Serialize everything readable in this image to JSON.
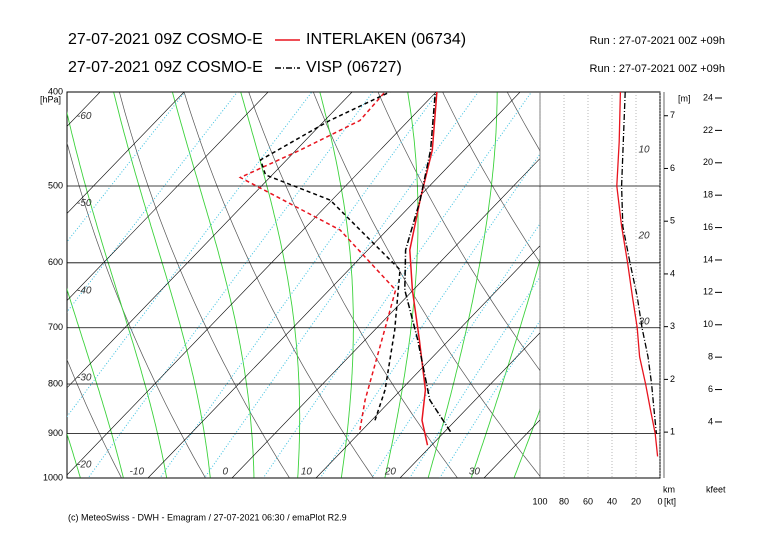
{
  "chart_data": {
    "type": "skewt",
    "footer": "(c) MeteoSwiss - DWH - Emagram / 27-07-2021 06:30 / emaPlot R2.9",
    "y_label": "[hPa]",
    "ylim": [
      400,
      1000
    ],
    "yticks": [
      400,
      500,
      600,
      700,
      800,
      900,
      1000
    ],
    "log_y": true,
    "xticks": [
      -60,
      -50,
      -40,
      -30,
      -20,
      -10,
      0,
      10,
      20,
      30
    ],
    "series": [
      {
        "name": "INTERLAKEN (06734)",
        "model": "27-07-2021 09Z COSMO-E",
        "run": "Run : 27-07-2021 00Z +09h",
        "color": "#e8141e",
        "line_style": "solid",
        "pressure": [
          925,
          872,
          811,
          721,
          640,
          582,
          517,
          459,
          400
        ],
        "temperature": [
          19.5,
          16.0,
          12.9,
          6.5,
          -0.1,
          -5.0,
          -9.5,
          -13.8,
          -19.9
        ],
        "dewpoint_pressure": [
          892,
          831,
          704,
          640,
          555,
          490,
          459,
          428,
          400
        ],
        "dewpoint": [
          9.7,
          6.9,
          1.2,
          -2.1,
          -15.6,
          -33.5,
          -29.5,
          -25.8,
          -26.1
        ],
        "wind_pressure": [
          400,
          450,
          500,
          550,
          600,
          650,
          700,
          750,
          800,
          850,
          900,
          950
        ],
        "wind_speed": [
          33,
          34,
          36,
          32,
          27,
          23,
          19,
          17,
          12,
          8,
          4,
          2
        ]
      },
      {
        "name": "VISP (06727)",
        "model": "27-07-2021 09Z COSMO-E",
        "run": "Run : 27-07-2021 00Z +09h",
        "color": "#000000",
        "line_style": "dashdot",
        "pressure": [
          896,
          831,
          721,
          640,
          582,
          517,
          459,
          400
        ],
        "temperature": [
          20.7,
          14.6,
          6.3,
          -1.0,
          -5.5,
          -9.5,
          -14.0,
          -20.1
        ],
        "dewpoint_pressure": [
          872,
          811,
          704,
          610,
          517,
          487,
          470,
          428,
          400
        ],
        "dewpoint": [
          10.4,
          8.1,
          2.4,
          -3.9,
          -20.2,
          -30.8,
          -33.1,
          -29.4,
          -25.5
        ],
        "wind_pressure": [
          400,
          500,
          550,
          600,
          650,
          700,
          750,
          800,
          850,
          900
        ],
        "wind_speed": [
          29,
          32,
          31,
          25,
          19,
          15,
          10,
          7,
          5,
          3
        ]
      }
    ],
    "wind_label": "[kt]",
    "wind_xlim": [
      100,
      0
    ],
    "wind_xticks": [
      100,
      80,
      60,
      40,
      20,
      0
    ],
    "height_label": "[m]",
    "height_unit": "km",
    "height_lim": [
      0.13,
      7.45
    ],
    "height_ticks": [
      1,
      2,
      3,
      4,
      5,
      6,
      7
    ],
    "feet_label": "kfeet",
    "feet_lim": [
      0.54,
      24.37
    ],
    "feet_ticks": [
      4,
      6,
      8,
      10,
      12,
      14,
      16,
      18,
      20,
      22,
      24
    ],
    "side_labels": [
      10,
      20,
      30
    ]
  }
}
